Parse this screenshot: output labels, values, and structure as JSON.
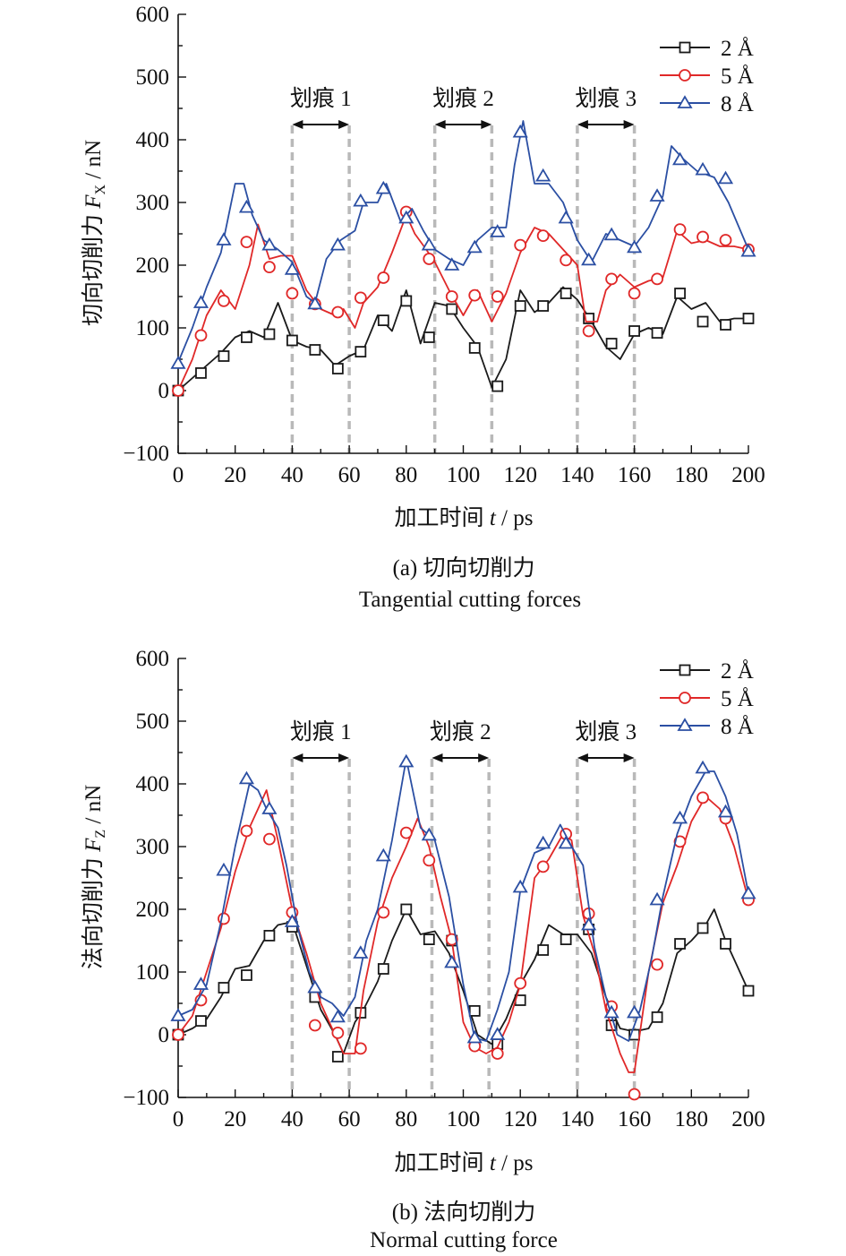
{
  "chart_data": [
    {
      "type": "line",
      "panel": "a",
      "caption_cn": "(a) 切向切削力",
      "caption_en": "Tangential cutting forces",
      "xlabel_prefix": "加工时间 ",
      "xlabel_var": "t",
      "xlabel_unit": " / ps",
      "ylabel_prefix": "切向切削力 ",
      "ylabel_var": "F",
      "ylabel_sub": "X",
      "ylabel_unit": " / nN",
      "xlim": [
        0,
        200
      ],
      "ylim": [
        -100,
        600
      ],
      "xticks": [
        0,
        20,
        40,
        60,
        80,
        100,
        120,
        140,
        160,
        180,
        200
      ],
      "yticks": [
        -100,
        0,
        100,
        200,
        300,
        400,
        500,
        600
      ],
      "ytick_labels": [
        "−100",
        "0",
        "100",
        "200",
        "300",
        "400",
        "500",
        "600"
      ],
      "grid": false,
      "legend_position": "top-right",
      "dividers": [
        40,
        60,
        90,
        110,
        140,
        160
      ],
      "scratches": [
        {
          "label": "划痕 1",
          "from": 40,
          "to": 60
        },
        {
          "label": "划痕 2",
          "from": 90,
          "to": 110
        },
        {
          "label": "划痕 3",
          "from": 140,
          "to": 160
        }
      ],
      "series": [
        {
          "name": "2 Å",
          "color": "#1a1a1a",
          "marker": "square",
          "x": [
            0,
            5,
            10,
            15,
            20,
            25,
            30,
            35,
            40,
            45,
            50,
            55,
            60,
            65,
            70,
            75,
            80,
            85,
            90,
            95,
            100,
            105,
            110,
            115,
            120,
            125,
            130,
            135,
            140,
            145,
            150,
            155,
            160,
            165,
            170,
            175,
            180,
            185,
            190,
            195,
            200
          ],
          "y": [
            0,
            20,
            40,
            60,
            85,
            95,
            85,
            140,
            80,
            70,
            65,
            40,
            55,
            65,
            120,
            95,
            160,
            75,
            140,
            135,
            100,
            70,
            5,
            50,
            160,
            125,
            140,
            165,
            145,
            110,
            70,
            50,
            90,
            100,
            90,
            150,
            130,
            140,
            110,
            115,
            115
          ],
          "mx": [
            0,
            8,
            16,
            24,
            32,
            40,
            48,
            56,
            64,
            72,
            80,
            88,
            96,
            104,
            112,
            120,
            128,
            136,
            144,
            152,
            160,
            168,
            176,
            184,
            192,
            200
          ],
          "my": [
            0,
            28,
            55,
            85,
            90,
            80,
            65,
            35,
            62,
            112,
            143,
            85,
            130,
            68,
            7,
            135,
            135,
            155,
            115,
            75,
            95,
            92,
            155,
            110,
            105,
            115
          ]
        },
        {
          "name": "5 Å",
          "color": "#e02828",
          "marker": "circle",
          "x": [
            0,
            5,
            10,
            15,
            20,
            25,
            28,
            32,
            36,
            40,
            45,
            50,
            55,
            58,
            62,
            65,
            70,
            75,
            80,
            83,
            87,
            90,
            95,
            100,
            105,
            110,
            115,
            120,
            125,
            130,
            135,
            140,
            143,
            147,
            150,
            155,
            160,
            165,
            170,
            175,
            180,
            185,
            190,
            195,
            200
          ],
          "y": [
            0,
            50,
            120,
            160,
            130,
            200,
            265,
            210,
            215,
            215,
            160,
            130,
            120,
            130,
            100,
            140,
            165,
            220,
            280,
            250,
            225,
            205,
            160,
            120,
            160,
            110,
            155,
            220,
            260,
            250,
            225,
            200,
            110,
            110,
            160,
            185,
            165,
            175,
            180,
            255,
            235,
            240,
            230,
            230,
            225
          ],
          "mx": [
            0,
            8,
            16,
            24,
            32,
            40,
            48,
            56,
            64,
            72,
            80,
            88,
            96,
            104,
            112,
            120,
            128,
            136,
            144,
            152,
            160,
            168,
            176,
            184,
            192,
            200
          ],
          "my": [
            0,
            88,
            143,
            237,
            197,
            155,
            138,
            125,
            148,
            180,
            285,
            210,
            150,
            152,
            150,
            232,
            247,
            208,
            95,
            178,
            155,
            178,
            257,
            245,
            240,
            225
          ]
        },
        {
          "name": "8 Å",
          "color": "#2b4fa3",
          "marker": "triangle",
          "x": [
            0,
            5,
            10,
            15,
            20,
            23,
            26,
            30,
            35,
            40,
            45,
            48,
            52,
            57,
            62,
            65,
            70,
            73,
            78,
            82,
            86,
            90,
            95,
            100,
            105,
            110,
            115,
            118,
            121,
            125,
            130,
            135,
            140,
            145,
            150,
            155,
            160,
            165,
            170,
            173,
            177,
            182,
            188,
            193,
            200
          ],
          "y": [
            45,
            100,
            165,
            220,
            330,
            330,
            280,
            240,
            225,
            205,
            150,
            140,
            210,
            240,
            255,
            300,
            300,
            330,
            270,
            290,
            255,
            225,
            210,
            200,
            240,
            260,
            260,
            360,
            430,
            330,
            330,
            300,
            240,
            205,
            250,
            240,
            230,
            260,
            310,
            390,
            370,
            350,
            340,
            300,
            225
          ],
          "mx": [
            0,
            8,
            16,
            24,
            32,
            40,
            48,
            56,
            64,
            72,
            80,
            88,
            96,
            104,
            112,
            120,
            128,
            136,
            144,
            152,
            160,
            168,
            176,
            184,
            192,
            200
          ],
          "my": [
            43,
            140,
            240,
            292,
            232,
            193,
            138,
            232,
            302,
            322,
            275,
            232,
            200,
            228,
            253,
            412,
            342,
            275,
            208,
            248,
            228,
            310,
            368,
            352,
            338,
            222
          ]
        }
      ]
    },
    {
      "type": "line",
      "panel": "b",
      "caption_cn": "(b) 法向切削力",
      "caption_en": "Normal cutting force",
      "xlabel_prefix": "加工时间 ",
      "xlabel_var": "t",
      "xlabel_unit": " / ps",
      "ylabel_prefix": "法向切削力 ",
      "ylabel_var": "F",
      "ylabel_sub": "Z",
      "ylabel_unit": " / nN",
      "xlim": [
        0,
        200
      ],
      "ylim": [
        -100,
        600
      ],
      "xticks": [
        0,
        20,
        40,
        60,
        80,
        100,
        120,
        140,
        160,
        180,
        200
      ],
      "yticks": [
        -100,
        0,
        100,
        200,
        300,
        400,
        500,
        600
      ],
      "ytick_labels": [
        "−100",
        "0",
        "100",
        "200",
        "300",
        "400",
        "500",
        "600"
      ],
      "grid": false,
      "legend_position": "top-right",
      "dividers": [
        40,
        60,
        89,
        109,
        140,
        160
      ],
      "scratches": [
        {
          "label": "划痕 1",
          "from": 40,
          "to": 60
        },
        {
          "label": "划痕 2",
          "from": 89,
          "to": 109
        },
        {
          "label": "划痕 3",
          "from": 140,
          "to": 160
        }
      ],
      "series": [
        {
          "name": "2 Å",
          "color": "#1a1a1a",
          "marker": "square",
          "x": [
            0,
            5,
            10,
            15,
            20,
            25,
            30,
            35,
            40,
            45,
            50,
            55,
            58,
            62,
            65,
            70,
            75,
            80,
            85,
            90,
            95,
            100,
            105,
            110,
            115,
            120,
            125,
            130,
            135,
            140,
            145,
            150,
            155,
            160,
            165,
            170,
            175,
            180,
            185,
            188,
            192,
            196,
            200
          ],
          "y": [
            0,
            10,
            25,
            60,
            105,
            110,
            150,
            175,
            180,
            110,
            40,
            0,
            -30,
            20,
            40,
            85,
            150,
            200,
            160,
            165,
            130,
            70,
            0,
            -15,
            25,
            80,
            120,
            175,
            160,
            160,
            130,
            60,
            10,
            5,
            10,
            50,
            130,
            150,
            175,
            200,
            150,
            110,
            70
          ],
          "mx": [
            0,
            8,
            16,
            24,
            32,
            40,
            48,
            56,
            64,
            72,
            80,
            88,
            96,
            104,
            112,
            120,
            128,
            136,
            144,
            152,
            160,
            168,
            176,
            184,
            192,
            200
          ],
          "my": [
            0,
            22,
            75,
            95,
            158,
            172,
            60,
            -35,
            35,
            105,
            200,
            152,
            150,
            38,
            -15,
            55,
            135,
            152,
            168,
            15,
            0,
            28,
            145,
            170,
            145,
            70
          ]
        },
        {
          "name": "5 Å",
          "color": "#e02828",
          "marker": "circle",
          "x": [
            0,
            5,
            10,
            15,
            20,
            25,
            28,
            31,
            35,
            40,
            45,
            50,
            55,
            58,
            62,
            65,
            70,
            75,
            80,
            84,
            88,
            92,
            96,
            100,
            104,
            108,
            112,
            116,
            120,
            125,
            130,
            135,
            138,
            142,
            146,
            150,
            155,
            158,
            160,
            165,
            170,
            175,
            180,
            185,
            190,
            195,
            200
          ],
          "y": [
            0,
            30,
            100,
            170,
            260,
            330,
            360,
            390,
            310,
            200,
            130,
            50,
            0,
            -30,
            -30,
            70,
            180,
            250,
            300,
            345,
            300,
            220,
            150,
            20,
            -20,
            -30,
            -20,
            20,
            80,
            250,
            280,
            320,
            310,
            190,
            130,
            40,
            -30,
            -60,
            -60,
            100,
            210,
            270,
            340,
            380,
            360,
            300,
            215
          ],
          "mx": [
            0,
            8,
            16,
            24,
            32,
            40,
            48,
            56,
            64,
            72,
            80,
            88,
            96,
            104,
            112,
            120,
            128,
            136,
            144,
            152,
            160,
            168,
            176,
            184,
            192,
            200
          ],
          "my": [
            0,
            55,
            185,
            325,
            312,
            195,
            15,
            3,
            -22,
            195,
            322,
            278,
            152,
            -18,
            -30,
            82,
            268,
            320,
            193,
            45,
            -95,
            112,
            308,
            378,
            345,
            215
          ]
        },
        {
          "name": "8 Å",
          "color": "#2b4fa3",
          "marker": "triangle",
          "x": [
            0,
            5,
            10,
            15,
            20,
            25,
            28,
            31,
            35,
            38,
            42,
            46,
            50,
            54,
            58,
            62,
            66,
            70,
            75,
            80,
            85,
            90,
            95,
            100,
            104,
            108,
            112,
            116,
            120,
            125,
            130,
            134,
            138,
            142,
            146,
            150,
            154,
            158,
            162,
            166,
            170,
            175,
            180,
            185,
            188,
            192,
            196,
            200
          ],
          "y": [
            30,
            40,
            80,
            180,
            300,
            400,
            390,
            360,
            330,
            270,
            170,
            100,
            60,
            50,
            30,
            60,
            150,
            200,
            310,
            440,
            330,
            310,
            220,
            80,
            -5,
            -10,
            40,
            100,
            230,
            290,
            300,
            335,
            300,
            270,
            140,
            60,
            0,
            -10,
            40,
            120,
            220,
            320,
            380,
            420,
            420,
            380,
            320,
            225
          ],
          "mx": [
            0,
            8,
            16,
            24,
            32,
            40,
            48,
            56,
            64,
            72,
            80,
            88,
            96,
            104,
            112,
            120,
            128,
            136,
            144,
            152,
            160,
            168,
            176,
            184,
            192,
            200
          ],
          "my": [
            30,
            80,
            262,
            408,
            360,
            180,
            75,
            28,
            130,
            285,
            435,
            318,
            115,
            -5,
            0,
            235,
            305,
            305,
            175,
            35,
            35,
            215,
            345,
            425,
            355,
            225
          ]
        }
      ]
    }
  ]
}
